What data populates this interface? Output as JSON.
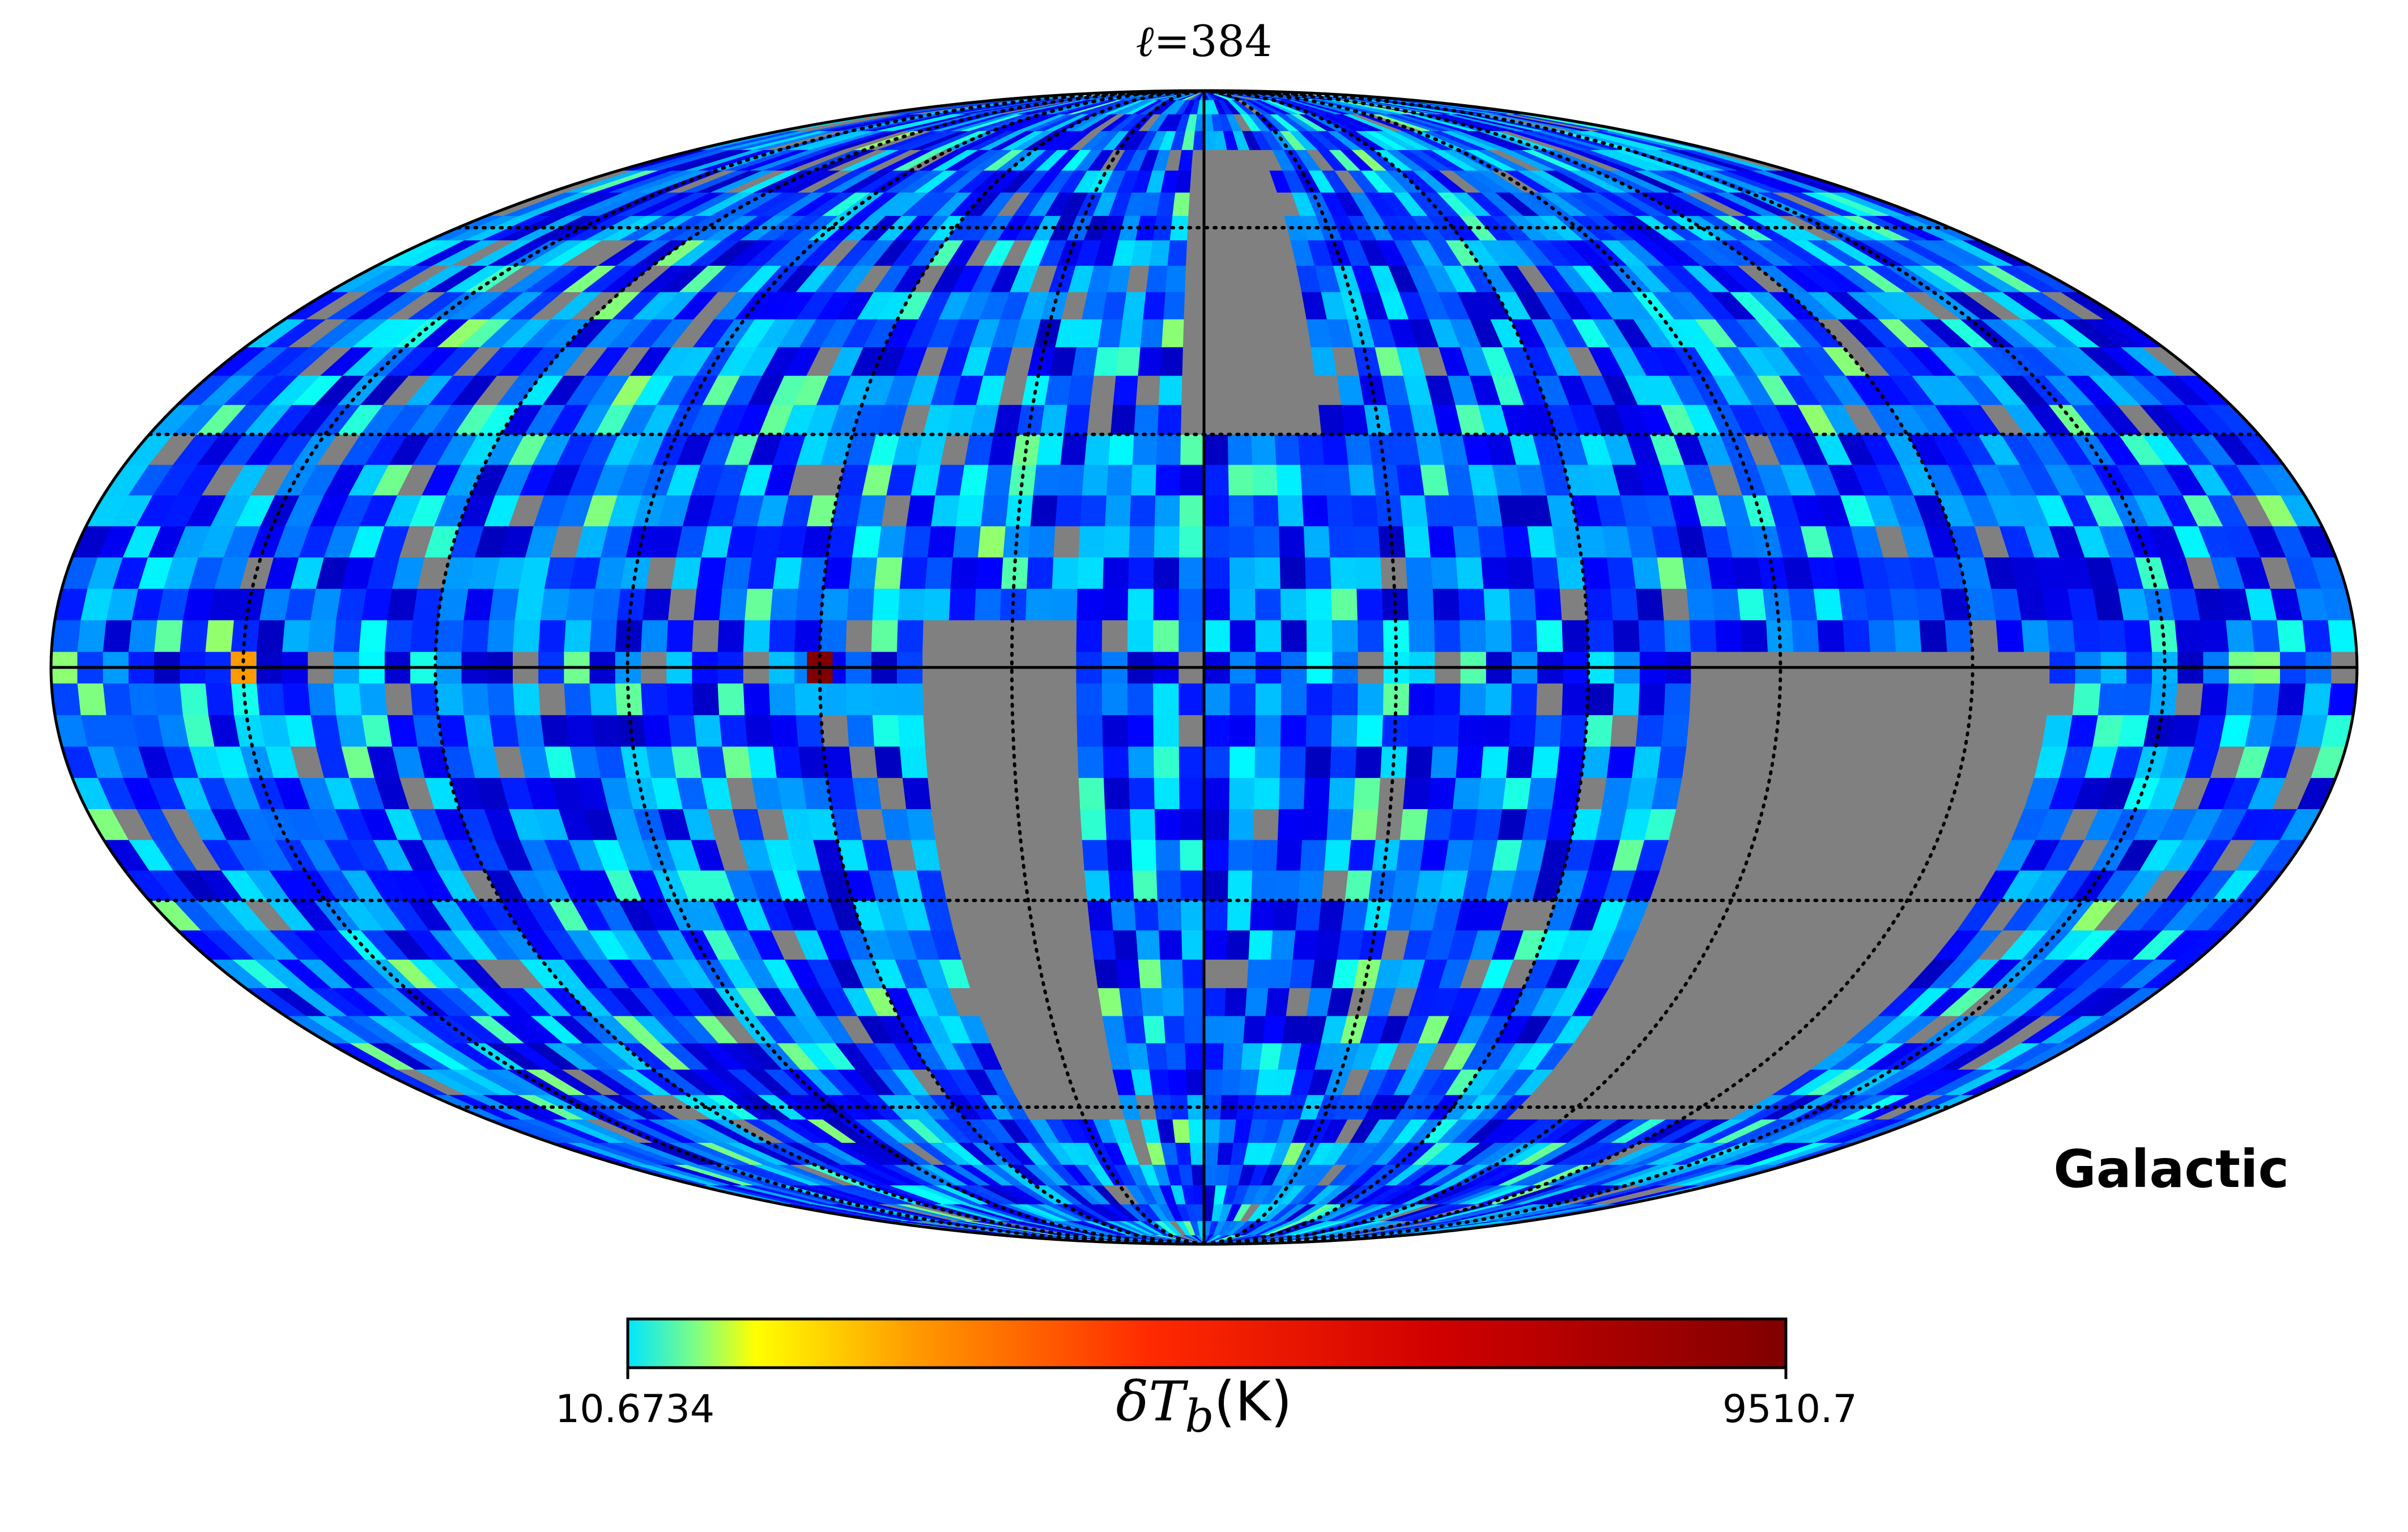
{
  "chart_data": {
    "type": "heatmap",
    "projection": "mollweide",
    "title_prefix": "ℓ=",
    "title_value": "384",
    "coordinate_system": "Galactic",
    "colorbar": {
      "min_label": "10.6734",
      "max_label": "9510.7",
      "label_symbol": "δT",
      "label_subscript": "b",
      "label_unit": "(K)",
      "min": 10.6734,
      "max": 9510.7,
      "colormap": "jet",
      "orientation": "horizontal",
      "placement": "bottom"
    },
    "masked_color": "#808080",
    "graticule": {
      "meridian_step_deg": 30,
      "parallel_step_deg": 30,
      "style": "dotted"
    },
    "hotspots": [
      {
        "lon_deg": 60,
        "lat_deg": 0,
        "value": 9510.7
      },
      {
        "lon_deg": 150,
        "lat_deg": 0,
        "value": 3000
      }
    ],
    "masked_regions": [
      {
        "lon_range": [
          -130,
          -75
        ],
        "lat_range": [
          -60,
          0
        ]
      },
      {
        "lon_range": [
          -20,
          5
        ],
        "lat_range": [
          30,
          75
        ]
      },
      {
        "lon_range": [
          20,
          45
        ],
        "lat_range": [
          -60,
          5
        ]
      }
    ]
  }
}
